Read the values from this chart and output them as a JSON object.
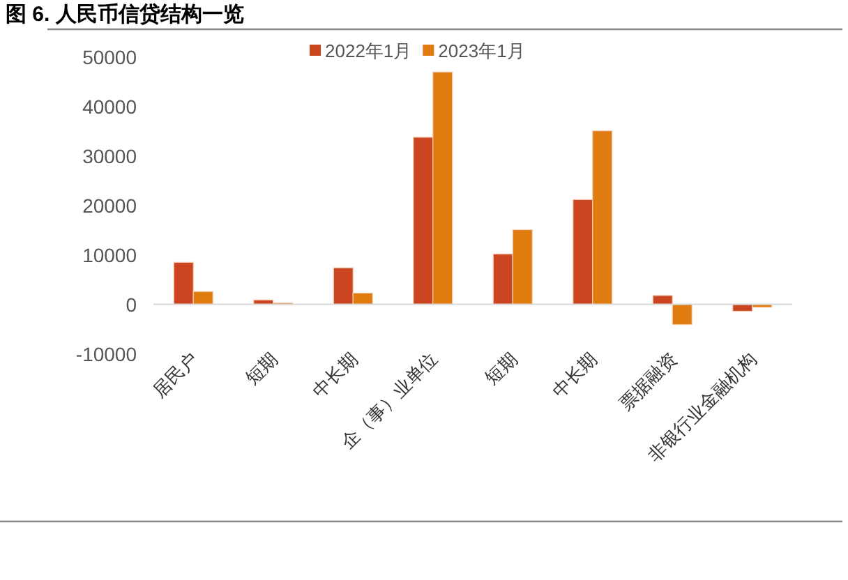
{
  "chart_data": {
    "type": "bar",
    "title": "图 6. 人民币信贷结构一览",
    "categories": [
      "居民户",
      "短期",
      "中长期",
      "企（事）业单位",
      "短期",
      "中长期",
      "票据融资",
      "非银行业金融机构"
    ],
    "series": [
      {
        "name": "2022年1月",
        "color": "#cc4521",
        "values": [
          8500,
          900,
          7400,
          33800,
          10200,
          21200,
          1800,
          -1400
        ]
      },
      {
        "name": "2023年1月",
        "color": "#e07b10",
        "values": [
          2600,
          300,
          2300,
          47000,
          15100,
          35100,
          -4100,
          -600
        ]
      }
    ],
    "ylim": [
      -10000,
      50000
    ],
    "yticks": [
      -10000,
      0,
      10000,
      20000,
      30000,
      40000,
      50000
    ],
    "grid": false,
    "legend": "top"
  }
}
